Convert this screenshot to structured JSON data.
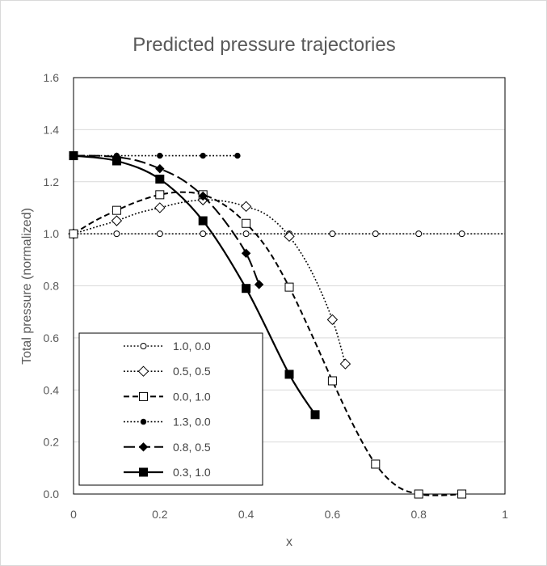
{
  "chart_data": {
    "type": "line",
    "title": "Predicted pressure trajectories",
    "xlabel": "x",
    "ylabel": "Total pressure (normalized)",
    "xlim": [
      0,
      1
    ],
    "ylim": [
      0,
      1.6
    ],
    "xticks": [
      "0",
      "0.2",
      "0.4",
      "0.6",
      "0.8",
      "1"
    ],
    "yticks": [
      "0.0",
      "0.2",
      "0.4",
      "0.6",
      "0.8",
      "1.0",
      "1.2",
      "1.4",
      "1.6"
    ],
    "grid": "horizontal",
    "legend_position": "bottom-left",
    "series": [
      {
        "name": "1.0, 0.0",
        "line": "dotted",
        "marker": "circle-open",
        "curve": {
          "x": [
            0,
            1
          ],
          "y": [
            1.0,
            1.0
          ]
        },
        "x": [
          0,
          0.1,
          0.2,
          0.3,
          0.4,
          0.5,
          0.6,
          0.7,
          0.8,
          0.9
        ],
        "y": [
          1.0,
          1.0,
          1.0,
          1.0,
          1.0,
          1.0,
          1.0,
          1.0,
          1.0,
          1.0
        ]
      },
      {
        "name": "0.5, 0.5",
        "line": "dotted",
        "marker": "diamond-open",
        "curve": {
          "x": [
            0,
            0.05,
            0.1,
            0.15,
            0.2,
            0.25,
            0.3,
            0.35,
            0.4,
            0.45,
            0.5,
            0.55,
            0.6,
            0.63
          ],
          "y": [
            1.0,
            1.025,
            1.05,
            1.08,
            1.1,
            1.12,
            1.13,
            1.125,
            1.105,
            1.07,
            0.99,
            0.86,
            0.67,
            0.5
          ]
        },
        "x": [
          0,
          0.1,
          0.2,
          0.3,
          0.4,
          0.5,
          0.6,
          0.63
        ],
        "y": [
          1.0,
          1.05,
          1.1,
          1.13,
          1.105,
          0.99,
          0.67,
          0.5
        ]
      },
      {
        "name": "0.0, 1.0",
        "line": "dashed",
        "marker": "square-open",
        "curve": {
          "x": [
            0,
            0.05,
            0.1,
            0.15,
            0.2,
            0.25,
            0.3,
            0.35,
            0.4,
            0.45,
            0.5,
            0.55,
            0.6,
            0.65,
            0.7,
            0.75,
            0.8,
            0.85,
            0.9
          ],
          "y": [
            1.0,
            1.05,
            1.09,
            1.125,
            1.15,
            1.16,
            1.15,
            1.11,
            1.04,
            0.94,
            0.795,
            0.62,
            0.435,
            0.26,
            0.115,
            0.03,
            0.0,
            -0.005,
            0.0
          ]
        },
        "x": [
          0,
          0.1,
          0.2,
          0.3,
          0.4,
          0.5,
          0.6,
          0.7,
          0.8,
          0.9
        ],
        "y": [
          1.0,
          1.09,
          1.15,
          1.15,
          1.04,
          0.795,
          0.435,
          0.115,
          0.0,
          0.0
        ]
      },
      {
        "name": "1.3, 0.0",
        "line": "dotted",
        "marker": "circle-filled",
        "curve": {
          "x": [
            0,
            0.38
          ],
          "y": [
            1.3,
            1.3
          ]
        },
        "x": [
          0,
          0.1,
          0.2,
          0.3,
          0.38
        ],
        "y": [
          1.3,
          1.3,
          1.3,
          1.3,
          1.3
        ]
      },
      {
        "name": "0.8, 0.5",
        "line": "long-dash",
        "marker": "diamond-filled",
        "curve": {
          "x": [
            0,
            0.05,
            0.1,
            0.15,
            0.2,
            0.25,
            0.3,
            0.35,
            0.4,
            0.43
          ],
          "y": [
            1.3,
            1.3,
            1.295,
            1.28,
            1.25,
            1.21,
            1.145,
            1.05,
            0.925,
            0.805
          ]
        },
        "x": [
          0,
          0.1,
          0.2,
          0.3,
          0.4,
          0.43
        ],
        "y": [
          1.3,
          1.295,
          1.25,
          1.145,
          0.925,
          0.805
        ]
      },
      {
        "name": "0.3, 1.0",
        "line": "solid",
        "marker": "square-filled",
        "curve": {
          "x": [
            0,
            0.1,
            0.2,
            0.3,
            0.4,
            0.5,
            0.56
          ],
          "y": [
            1.3,
            1.28,
            1.21,
            1.05,
            0.79,
            0.46,
            0.305
          ]
        },
        "x": [
          0,
          0.1,
          0.2,
          0.3,
          0.4,
          0.5,
          0.56
        ],
        "y": [
          1.3,
          1.28,
          1.21,
          1.05,
          0.79,
          0.46,
          0.305
        ]
      }
    ]
  }
}
